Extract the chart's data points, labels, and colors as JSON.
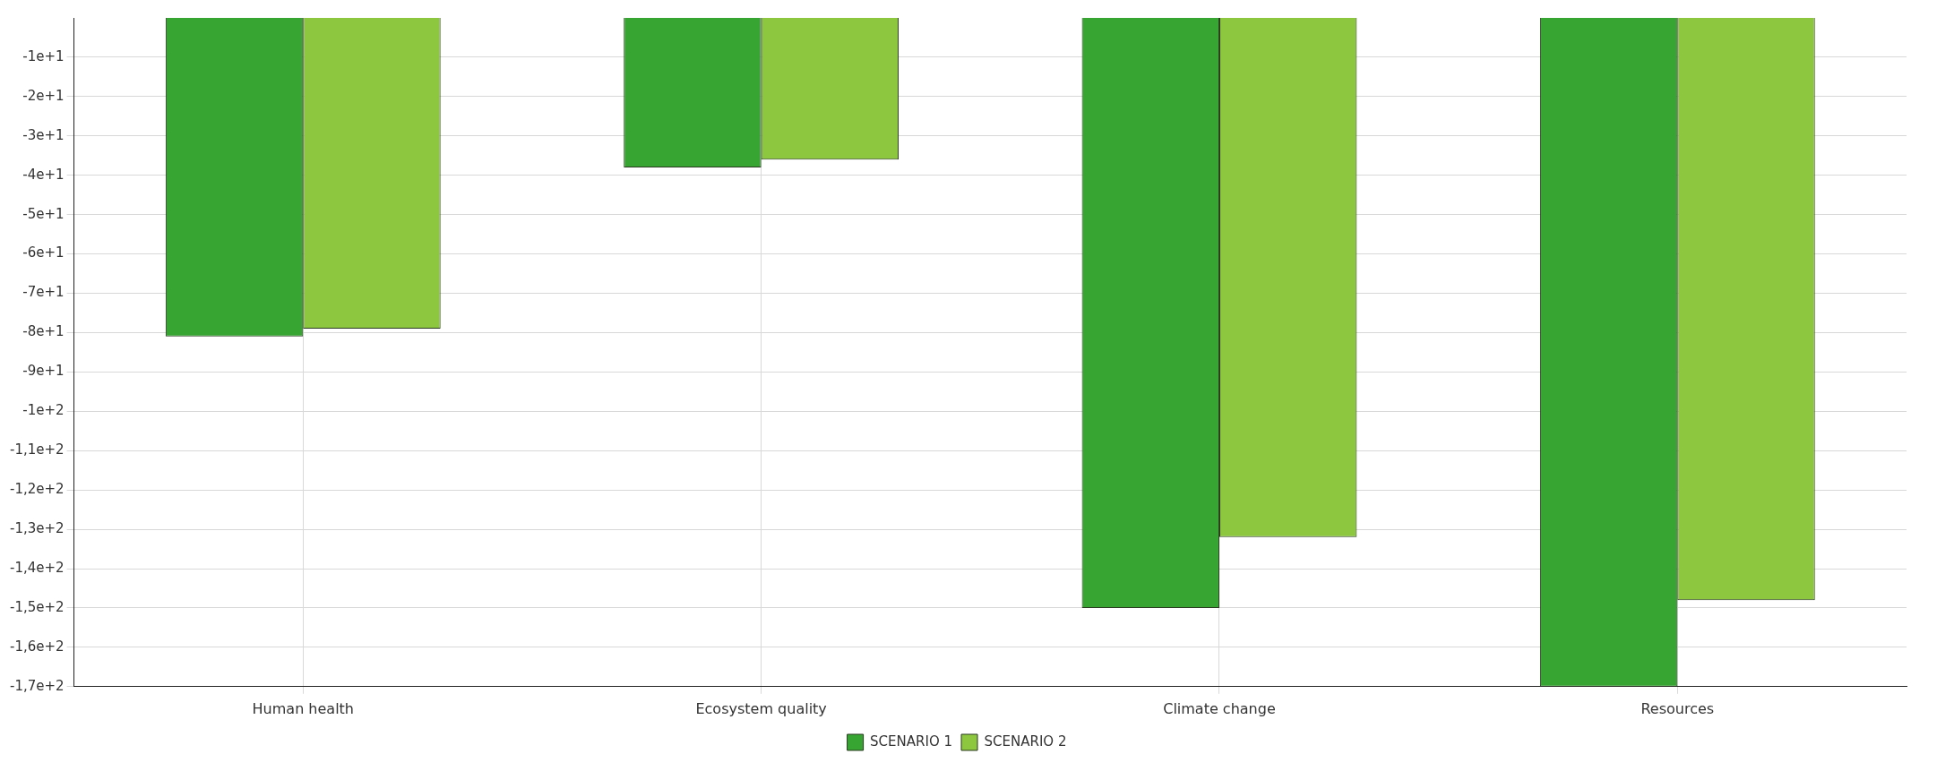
{
  "chart_data": {
    "type": "bar",
    "categories": [
      "Human health",
      "Ecosystem quality",
      "Climate change",
      "Resources"
    ],
    "series": [
      {
        "name": "SCENARIO 1",
        "color": "#36a532",
        "values": [
          -81,
          -38,
          -150,
          -170
        ]
      },
      {
        "name": "SCENARIO 2",
        "color": "#8dc63f",
        "values": [
          -79,
          -36,
          -132,
          -148
        ]
      }
    ],
    "ylim": [
      -170,
      0
    ],
    "yticks": [
      {
        "value": -10,
        "label": "-1e+1"
      },
      {
        "value": -20,
        "label": "-2e+1"
      },
      {
        "value": -30,
        "label": "-3e+1"
      },
      {
        "value": -40,
        "label": "-4e+1"
      },
      {
        "value": -50,
        "label": "-5e+1"
      },
      {
        "value": -60,
        "label": "-6e+1"
      },
      {
        "value": -70,
        "label": "-7e+1"
      },
      {
        "value": -80,
        "label": "-8e+1"
      },
      {
        "value": -90,
        "label": "-9e+1"
      },
      {
        "value": -100,
        "label": "-1e+2"
      },
      {
        "value": -110,
        "label": "-1,1e+2"
      },
      {
        "value": -120,
        "label": "-1,2e+2"
      },
      {
        "value": -130,
        "label": "-1,3e+2"
      },
      {
        "value": -140,
        "label": "-1,4e+2"
      },
      {
        "value": -150,
        "label": "-1,5e+2"
      },
      {
        "value": -160,
        "label": "-1,6e+2"
      },
      {
        "value": -170,
        "label": "-1,7e+2"
      }
    ],
    "grid": true,
    "legend": "bottom"
  }
}
